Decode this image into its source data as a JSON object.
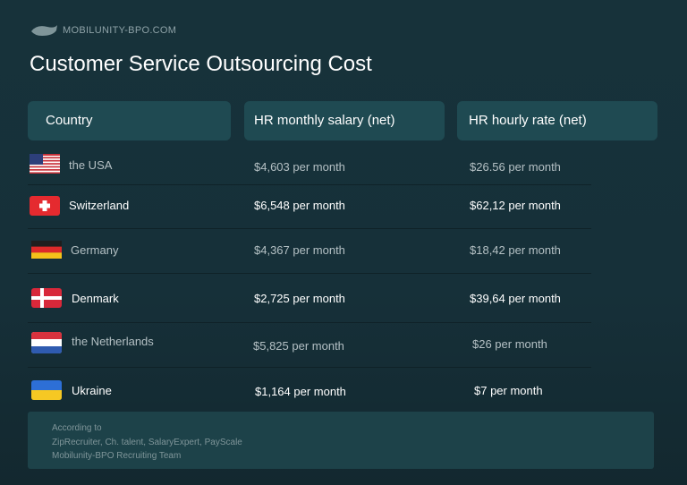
{
  "brand": "MOBILUNITY-BPO.COM",
  "title": "Customer Service Outsourcing Cost",
  "table": {
    "headers": [
      "Country",
      "HR monthly salary (net)",
      "HR hourly rate (net)"
    ],
    "rows": [
      [
        "the USA",
        "$4,603 per month",
        "$26.56 per month"
      ],
      [
        "Switzerland",
        "$6,548 per month",
        "$62,12 per month"
      ],
      [
        "Germany",
        "$4,367 per month",
        "$18,42 per month"
      ],
      [
        "Denmark",
        "$2,725 per month",
        "$39,64 per month"
      ],
      [
        "the Netherlands",
        "$5,825 per month",
        "$26 per month"
      ],
      [
        "Ukraine",
        "$1,164 per month",
        "$7 per month"
      ]
    ]
  },
  "footer": {
    "lines": [
      "According to",
      "ZipRecruiter, Ch. talent, SalaryExpert, PayScale",
      "Mobilunity-BPO Recruiting Team"
    ]
  }
}
